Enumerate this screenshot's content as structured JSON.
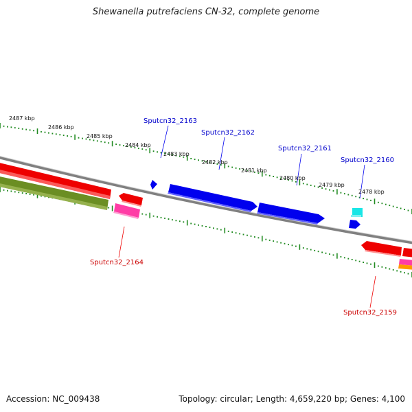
{
  "title": "Shewanella putrefaciens CN-32, complete genome",
  "footer": {
    "accession": "Accession: NC_009438",
    "summary": "Topology: circular; Length: 4,659,220 bp; Genes: 4,100"
  },
  "scale_ticks": [
    "2487 kbp",
    "2486 kbp",
    "2485 kbp",
    "2484 kbp",
    "2483 kbp",
    "2482 kbp",
    "2481 kbp",
    "2480 kbp",
    "2479 kbp",
    "2478 kbp"
  ],
  "genes_plus": [
    "Sputcn32_2163",
    "Sputcn32_2162",
    "Sputcn32_2161",
    "Sputcn32_2160"
  ],
  "genes_minus": [
    "Sputcn32_2164",
    "Sputcn32_2159"
  ],
  "colors": {
    "plus_strand": "#0000ee",
    "minus_strand": "#ee0000",
    "ticks": "#228b22",
    "backbone": "#808080",
    "olive": "#6b8e23",
    "pink": "#ff3da6",
    "cyan": "#19e6e6"
  }
}
